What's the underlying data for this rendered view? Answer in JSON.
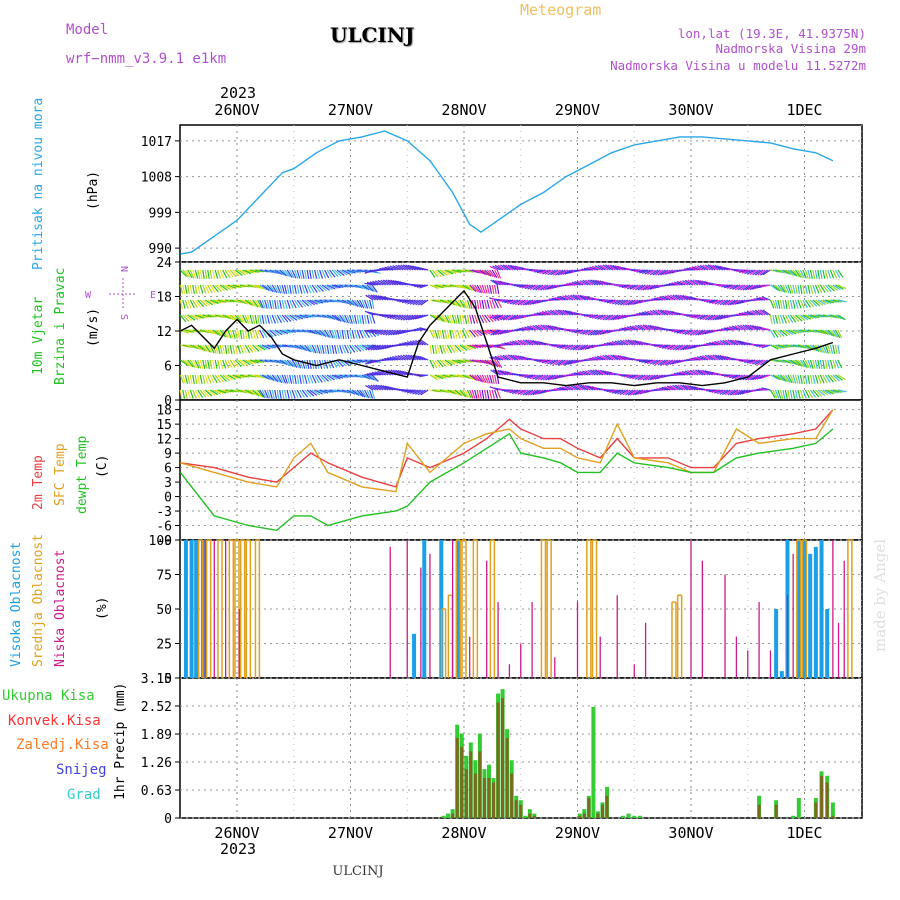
{
  "header": {
    "meteogram": "Meteogram",
    "model_label": "Model",
    "model_name": "wrf−nmm_v3.9.1  e1km",
    "station": "ULCINJ",
    "lonlat": "lon,lat (19.3E, 41.9375N)",
    "elevation": "Nadmorska Visina 29m",
    "model_elevation": "Nadmorska Visina u modelu 11.5272m",
    "year": "2023",
    "footer_station": "ULCINJ",
    "watermark": "made by Angel"
  },
  "colors": {
    "pressure": "#2aa6e8",
    "wind_label": "#22c022",
    "wind_speed": "#000000",
    "temp2m": "#e84040",
    "sfc": "#e0a020",
    "dewpt": "#22c022",
    "high_cloud": "#1aa0e8",
    "mid_cloud": "#e0a020",
    "low_cloud": "#cc1a8c",
    "precip_total": "#33cc33",
    "precip_conv": "#ff3333",
    "frozen": "#ff7a20",
    "snow": "#4444dd",
    "hail": "#33cccc",
    "compass": "#b050d0"
  },
  "time_axis": {
    "top_labels": [
      "26NOV",
      "27NOV",
      "28NOV",
      "29NOV",
      "30NOV",
      "1DEC"
    ],
    "bottom_labels": [
      "26NOV",
      "27NOV",
      "28NOV",
      "29NOV",
      "30NOV",
      "1DEC"
    ]
  },
  "legend": {
    "pressure_label": "Pritisak na nivou mora",
    "pressure_unit": "(hPa)",
    "wind_label_1": "10m Vjetar",
    "wind_label_2": "Brzina i Pravac",
    "wind_unit": "(m/s)",
    "compass_n": "N",
    "compass_s": "S",
    "compass_e": "E",
    "compass_w": "W",
    "temp_2m": "2m Temp",
    "temp_sfc": "SFC Temp",
    "temp_dewpt": "dewpt Temp",
    "temp_unit": "(C)",
    "cloud_high": "Visoka Oblacnost",
    "cloud_mid": "Srednja Oblacnost",
    "cloud_low": "Niska Oblacnost",
    "cloud_unit": "(%)",
    "precip_total": "Ukupna  Kisa",
    "precip_conv": "Konvek.Kisa",
    "precip_frozen": "Zaledj.Kisa",
    "precip_snow": "Snijeg",
    "precip_hail": "Grad",
    "precip_unit": "1hr Precip (mm)"
  },
  "chart_data": [
    {
      "type": "line",
      "name": "pressure",
      "ylabel": "Pritisak na nivou mora (hPa)",
      "yticks": [
        990,
        999,
        1008,
        1017
      ],
      "ylim": [
        986.5,
        1021
      ],
      "x_days": [
        0,
        0.1,
        0.3,
        0.5,
        0.7,
        0.9,
        1.0,
        1.2,
        1.4,
        1.6,
        1.8,
        2.0,
        2.2,
        2.4,
        2.55,
        2.65,
        2.8,
        3.0,
        3.2,
        3.4,
        3.6,
        3.8,
        4.0,
        4.2,
        4.4,
        4.6,
        4.8,
        5.0,
        5.2,
        5.4,
        5.6,
        5.75
      ],
      "values": [
        988.5,
        989,
        993,
        997,
        1003,
        1009,
        1010,
        1014,
        1017,
        1018,
        1019.5,
        1017,
        1012,
        1004,
        996,
        994,
        997,
        1001,
        1004,
        1008,
        1011,
        1014,
        1016,
        1017,
        1018,
        1018,
        1017.5,
        1017,
        1016.5,
        1015,
        1014,
        1012
      ]
    },
    {
      "type": "line",
      "name": "wind",
      "ylabel": "10m Vjetar Brzina i Pravac (m/s)",
      "yticks": [
        0,
        6,
        12,
        18,
        24
      ],
      "ylim": [
        0,
        24
      ],
      "x_days": [
        0,
        0.1,
        0.2,
        0.3,
        0.4,
        0.5,
        0.6,
        0.7,
        0.8,
        0.9,
        1.0,
        1.2,
        1.4,
        1.6,
        1.8,
        2.0,
        2.1,
        2.2,
        2.3,
        2.4,
        2.5,
        2.6,
        2.7,
        2.8,
        3.0,
        3.2,
        3.4,
        3.6,
        3.8,
        4.0,
        4.2,
        4.4,
        4.6,
        4.8,
        5.0,
        5.2,
        5.4,
        5.6,
        5.75
      ],
      "values": [
        12,
        13,
        11,
        9,
        12,
        14,
        12,
        13,
        11,
        8,
        7,
        6,
        7,
        6,
        5,
        4,
        10,
        13,
        15,
        17,
        19,
        16,
        10,
        4,
        3,
        3,
        2.5,
        3,
        3,
        2.5,
        3,
        3,
        2.5,
        3,
        4,
        7,
        8,
        9,
        10
      ]
    },
    {
      "type": "line",
      "name": "temperature",
      "ylabel": "(C)",
      "yticks": [
        -9,
        -6,
        -3,
        0,
        3,
        6,
        9,
        12,
        15,
        18
      ],
      "ylim": [
        -9,
        20
      ],
      "x_days": [
        0,
        0.3,
        0.6,
        0.85,
        1.0,
        1.15,
        1.3,
        1.6,
        1.9,
        2.0,
        2.2,
        2.5,
        2.7,
        2.9,
        3.0,
        3.2,
        3.35,
        3.5,
        3.7,
        3.85,
        4.0,
        4.3,
        4.5,
        4.7,
        4.9,
        5.1,
        5.4,
        5.6,
        5.75
      ],
      "series": [
        {
          "name": "2m Temp",
          "values": [
            7,
            6,
            4,
            3,
            6,
            9,
            7,
            4,
            2,
            8,
            6,
            9,
            12,
            16,
            14,
            12,
            12,
            10,
            8,
            12,
            8,
            8,
            6,
            6,
            11,
            12,
            13,
            14,
            18
          ]
        },
        {
          "name": "SFC Temp",
          "values": [
            7,
            5,
            3,
            2,
            8,
            11,
            5,
            2,
            1,
            11,
            5,
            11,
            13,
            14,
            12,
            10,
            10,
            8,
            7,
            15,
            8,
            7,
            5,
            5,
            14,
            11,
            12,
            12,
            18
          ]
        },
        {
          "name": "dewpt Temp",
          "values": [
            5,
            -4,
            -6,
            -7,
            -4,
            -4,
            -6,
            -4,
            -3,
            -2,
            3,
            7,
            10,
            13,
            9,
            8,
            7,
            5,
            5,
            9,
            7,
            6,
            5,
            5,
            8,
            9,
            10,
            11,
            14
          ]
        }
      ]
    },
    {
      "type": "bar",
      "name": "cloud",
      "ylabel": "(%)",
      "yticks": [
        0,
        25,
        50,
        75,
        100
      ],
      "ylim": [
        0,
        100
      ],
      "series": [
        {
          "name": "Visoka Oblacnost",
          "x_days": [
            0.05,
            0.1,
            0.14,
            0.2,
            2.06,
            2.15,
            2.3,
            2.45,
            5.25,
            5.3,
            5.35,
            5.45,
            5.5,
            5.55,
            5.6,
            5.65,
            5.7
          ],
          "values": [
            100,
            100,
            100,
            100,
            32,
            100,
            100,
            100,
            50,
            5,
            100,
            100,
            100,
            90,
            95,
            100,
            50
          ]
        },
        {
          "name": "Srednja Oblacnost",
          "x_days": [
            0.18,
            0.25,
            0.35,
            0.45,
            0.5,
            0.55,
            0.6,
            0.68,
            2.32,
            2.38,
            2.45,
            2.5,
            2.6,
            2.75,
            3.2,
            3.25,
            3.6,
            3.65,
            4.35,
            4.4,
            5.45,
            5.5,
            5.9
          ],
          "values": [
            100,
            100,
            100,
            100,
            100,
            100,
            100,
            100,
            50,
            60,
            100,
            100,
            100,
            100,
            100,
            100,
            100,
            100,
            55,
            60,
            100,
            100,
            100
          ]
        },
        {
          "name": "Niska Oblacnost",
          "x_days": [
            0.22,
            0.3,
            0.4,
            0.52,
            1.85,
            2.0,
            2.12,
            2.2,
            2.4,
            2.55,
            2.7,
            2.8,
            2.9,
            3.0,
            3.1,
            3.3,
            3.5,
            3.7,
            3.85,
            4.0,
            4.1,
            4.5,
            4.6,
            4.8,
            4.9,
            5.0,
            5.1,
            5.2,
            5.35,
            5.4,
            5.75,
            5.8,
            5.85
          ],
          "values": [
            100,
            100,
            100,
            50,
            95,
            100,
            80,
            90,
            100,
            30,
            85,
            55,
            10,
            25,
            55,
            15,
            55,
            30,
            60,
            10,
            40,
            100,
            85,
            75,
            30,
            20,
            55,
            20,
            60,
            90,
            100,
            40,
            85
          ]
        }
      ]
    },
    {
      "type": "bar",
      "name": "precipitation",
      "ylabel": "1hr Precip (mm)",
      "yticks": [
        0,
        0.63,
        1.26,
        1.89,
        2.52,
        3.15
      ],
      "ylim": [
        0,
        3.15
      ],
      "x_days": [
        2.32,
        2.36,
        2.4,
        2.44,
        2.48,
        2.52,
        2.56,
        2.6,
        2.64,
        2.68,
        2.72,
        2.76,
        2.8,
        2.84,
        2.88,
        2.92,
        2.96,
        3.0,
        3.04,
        3.08,
        3.12,
        3.16,
        3.52,
        3.56,
        3.6,
        3.64,
        3.68,
        3.72,
        3.76,
        3.9,
        3.95,
        4.0,
        4.05,
        5.1,
        5.25,
        5.4,
        5.45,
        5.6,
        5.65,
        5.7,
        5.75
      ],
      "series": [
        {
          "name": "Ukupna Kisa",
          "values": [
            0.05,
            0.1,
            0.2,
            2.1,
            1.9,
            1.4,
            1.7,
            1.3,
            1.9,
            1.1,
            1.2,
            0.9,
            2.8,
            2.9,
            2.0,
            1.3,
            0.5,
            0.4,
            0.05,
            0.2,
            0.1,
            0,
            0.1,
            0.2,
            0.5,
            2.5,
            0.15,
            0.35,
            0.7,
            0.05,
            0.1,
            0.05,
            0.05,
            0.5,
            0.4,
            0.05,
            0.45,
            0.45,
            1.05,
            0.95,
            0.35
          ]
        },
        {
          "name": "Konvek.Kisa",
          "values": [
            0,
            0,
            0.1,
            1.8,
            1.6,
            1.1,
            1.5,
            1.0,
            1.5,
            0.9,
            0.9,
            0.8,
            2.6,
            2.7,
            1.8,
            1.0,
            0.4,
            0.3,
            0,
            0.1,
            0.05,
            0,
            0.05,
            0.1,
            0.45,
            0,
            0.1,
            0.3,
            0.5,
            0,
            0,
            0,
            0,
            0.3,
            0.3,
            0,
            0,
            0.35,
            0.95,
            0.8,
            0.05
          ]
        }
      ]
    }
  ]
}
